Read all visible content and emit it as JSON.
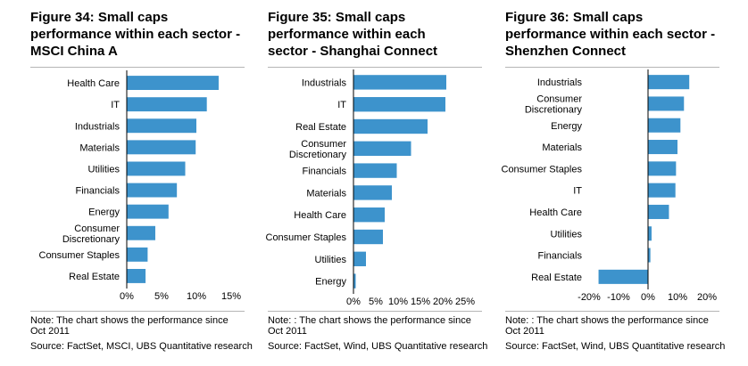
{
  "colors": {
    "bar": "#3d93cc",
    "axis": "#000000",
    "separator": "#b5b5b5"
  },
  "panels": [
    {
      "title": "Figure 34: Small caps performance within each sector - MSCI China A",
      "note": "Note: The chart shows the performance since Oct 2011",
      "source": "Source: FactSet, MSCI, UBS Quantitative research",
      "chart_data": {
        "type": "bar",
        "orientation": "horizontal",
        "categories": [
          "Health Care",
          "IT",
          "Industrials",
          "Materials",
          "Utilities",
          "Financials",
          "Energy",
          "Consumer Discretionary",
          "Consumer Staples",
          "Real Estate"
        ],
        "values": [
          13.2,
          11.5,
          10.0,
          9.9,
          8.4,
          7.2,
          6.0,
          4.1,
          3.0,
          2.7
        ],
        "xlim": [
          0,
          15
        ],
        "ticks": [
          0,
          5,
          10,
          15
        ],
        "tick_labels": [
          "0%",
          "5%",
          "10%",
          "15%"
        ],
        "xlabel": "",
        "ylabel": ""
      }
    },
    {
      "title": "Figure 35: Small caps performance within each sector - Shanghai Connect",
      "note": "Note: : The chart shows the performance since Oct 2011",
      "source": "Source: FactSet, Wind, UBS Quantitative research",
      "chart_data": {
        "type": "bar",
        "orientation": "horizontal",
        "categories": [
          "Industrials",
          "IT",
          "Real Estate",
          "Consumer Discretionary",
          "Financials",
          "Materials",
          "Health Care",
          "Consumer Staples",
          "Utilities",
          "Energy"
        ],
        "values": [
          20.8,
          20.6,
          16.6,
          12.9,
          9.7,
          8.6,
          7.0,
          6.6,
          2.8,
          0.5
        ],
        "xlim": [
          0,
          25
        ],
        "ticks": [
          0,
          5,
          10,
          15,
          20,
          25
        ],
        "tick_labels": [
          "0%",
          "5%",
          "10%",
          "15%",
          "20%",
          "25%"
        ],
        "xlabel": "",
        "ylabel": ""
      }
    },
    {
      "title": "Figure 36: Small caps performance within each sector - Shenzhen Connect",
      "note": "Note: : The chart shows the performance since Oct 2011",
      "source": "Source: FactSet, Wind, UBS Quantitative research",
      "chart_data": {
        "type": "bar",
        "orientation": "horizontal",
        "categories": [
          "Industrials",
          "Consumer Discretionary",
          "Energy",
          "Materials",
          "Consumer Staples",
          "IT",
          "Health Care",
          "Utilities",
          "Financials",
          "Real Estate"
        ],
        "values": [
          14.0,
          12.2,
          11.0,
          10.0,
          9.5,
          9.3,
          7.1,
          1.2,
          0.8,
          -16.8
        ],
        "xlim": [
          -20,
          20
        ],
        "ticks": [
          -20,
          -10,
          0,
          10,
          20
        ],
        "tick_labels": [
          "-20%",
          "-10%",
          "0%",
          "10%",
          "20%"
        ],
        "xlabel": "",
        "ylabel": ""
      }
    }
  ]
}
